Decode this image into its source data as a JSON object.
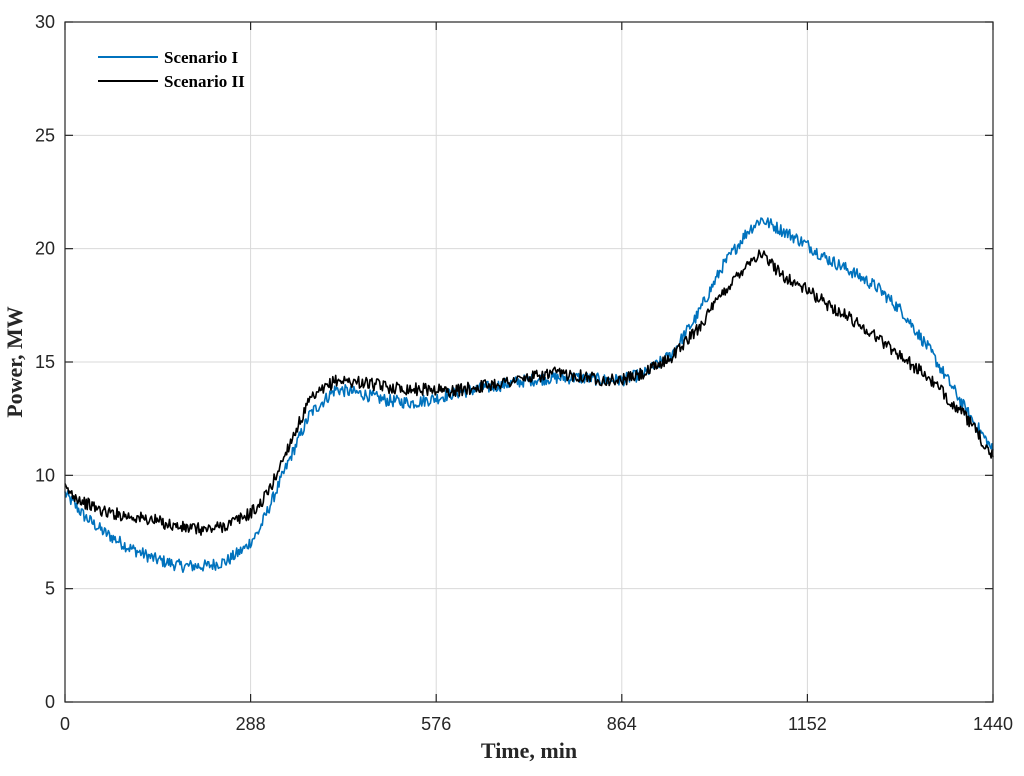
{
  "chart_data": {
    "type": "line",
    "title": "",
    "xlabel": "Time, min",
    "ylabel": "Power, MW",
    "xlim": [
      0,
      1440
    ],
    "ylim": [
      0,
      30
    ],
    "xticks": [
      0,
      288,
      576,
      864,
      1152,
      1440
    ],
    "yticks": [
      0,
      5,
      10,
      15,
      20,
      25,
      30
    ],
    "grid": true,
    "legend": "top-left",
    "series": [
      {
        "name": "Scenario I",
        "color": "#0072BD",
        "x": [
          0,
          30,
          60,
          100,
          140,
          180,
          220,
          250,
          280,
          300,
          320,
          350,
          380,
          420,
          460,
          500,
          540,
          576,
          600,
          640,
          680,
          720,
          760,
          800,
          840,
          864,
          900,
          940,
          980,
          1020,
          1060,
          1080,
          1100,
          1120,
          1150,
          1180,
          1220,
          1260,
          1300,
          1340,
          1370,
          1400,
          1440
        ],
        "values": [
          9.2,
          8.2,
          7.5,
          6.8,
          6.3,
          6.0,
          6.0,
          6.2,
          6.8,
          7.5,
          8.8,
          10.8,
          12.7,
          13.8,
          13.6,
          13.3,
          13.2,
          13.4,
          13.6,
          13.8,
          14.0,
          14.2,
          14.3,
          14.3,
          14.2,
          14.2,
          14.5,
          15.3,
          17.0,
          19.2,
          20.8,
          21.3,
          21.0,
          20.7,
          20.2,
          19.6,
          19.0,
          18.3,
          17.2,
          15.6,
          14.2,
          12.8,
          11.1
        ]
      },
      {
        "name": "Scenario II",
        "color": "#000000",
        "x": [
          0,
          30,
          60,
          100,
          140,
          180,
          220,
          250,
          280,
          300,
          320,
          350,
          380,
          420,
          460,
          500,
          540,
          576,
          600,
          640,
          680,
          720,
          760,
          800,
          840,
          864,
          900,
          940,
          980,
          1020,
          1060,
          1080,
          1100,
          1120,
          1150,
          1180,
          1220,
          1260,
          1300,
          1340,
          1370,
          1400,
          1440
        ],
        "values": [
          9.4,
          8.8,
          8.4,
          8.2,
          8.0,
          7.7,
          7.6,
          7.8,
          8.2,
          8.6,
          9.5,
          11.5,
          13.3,
          14.2,
          14.1,
          13.9,
          13.8,
          13.8,
          13.7,
          13.9,
          14.1,
          14.3,
          14.5,
          14.4,
          14.2,
          14.2,
          14.5,
          15.2,
          16.4,
          18.0,
          19.4,
          19.8,
          19.2,
          18.7,
          18.2,
          17.6,
          16.9,
          16.1,
          15.2,
          14.3,
          13.4,
          12.5,
          10.8
        ]
      }
    ]
  }
}
